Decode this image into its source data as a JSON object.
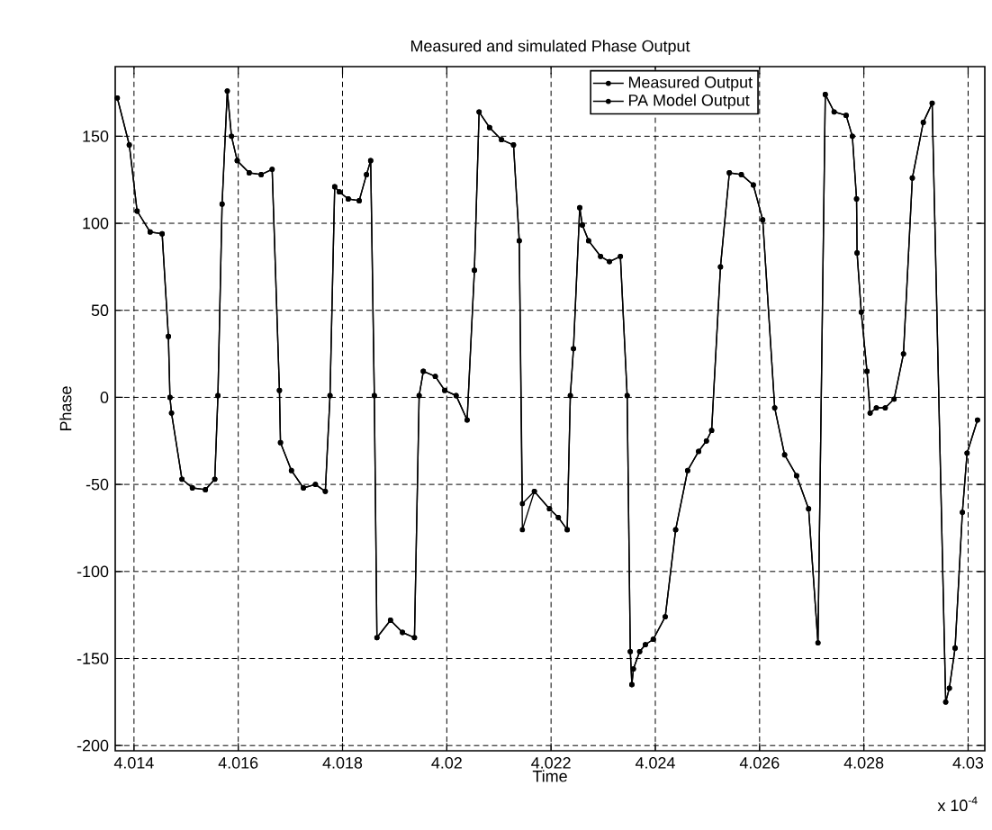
{
  "chart_data": {
    "type": "line",
    "title": "Measured and simulated Phase Output",
    "xlabel": "Time",
    "ylabel": "Phase",
    "annotations": [
      "x 10$^{-4}$"
    ],
    "x": [
      4.01368,
      4.01391,
      4.01406,
      4.01431,
      4.01454,
      4.01466,
      4.01469,
      4.01472,
      4.01492,
      4.01512,
      4.01537,
      4.01555,
      4.01561,
      4.01569,
      4.01579,
      4.01587,
      4.01598,
      4.01621,
      4.01644,
      4.01665,
      4.01679,
      4.01681,
      4.01702,
      4.01725,
      4.01748,
      4.01767,
      4.01776,
      4.01785,
      4.01794,
      4.01811,
      4.01832,
      4.01846,
      4.01854,
      4.01861,
      4.01866,
      4.01892,
      4.01915,
      4.01938,
      4.01947,
      4.01955,
      4.01978,
      4.01996,
      4.02018,
      4.02039,
      4.02053,
      4.02062,
      4.02082,
      4.02105,
      4.02128,
      4.02139,
      4.02145,
      4.02168,
      4.02197,
      4.02214,
      4.02231,
      4.02237,
      4.02243,
      4.02255,
      4.0226,
      4.02272,
      4.02295,
      4.02312,
      4.02333,
      4.02346,
      4.02352,
      4.02355,
      4.02358,
      4.0237,
      4.02381,
      4.02396,
      4.02419,
      4.02439,
      4.02462,
      4.02483,
      4.02498,
      4.02508,
      4.02525,
      4.02542,
      4.02565,
      4.02588,
      4.02606,
      4.02629,
      4.02648,
      4.02671,
      4.02694,
      4.02712,
      4.02726,
      4.02743,
      4.02766,
      4.02778,
      4.02786,
      4.02787,
      4.02795,
      4.02806,
      4.02812,
      4.02824,
      4.02841,
      4.02858,
      4.02876,
      4.02893,
      4.02914,
      4.02931,
      4.02957,
      4.02964,
      4.02975,
      4.02989,
      4.02998,
      4.03018
    ],
    "series": [
      {
        "name": "Measured Output",
        "color": "#000000",
        "values": [
          172,
          145,
          107,
          95,
          94,
          35,
          0,
          -9,
          -47,
          -52,
          -53,
          -47,
          1,
          111,
          176,
          150,
          136,
          129,
          128,
          131,
          4,
          -26,
          -42,
          -52,
          -50,
          -54,
          1,
          121,
          118,
          114,
          113,
          128,
          136,
          1,
          -138,
          -128,
          -135,
          -138,
          1,
          15,
          12,
          4,
          1,
          -13,
          73,
          164,
          155,
          148,
          145,
          90,
          -61,
          -54,
          -64,
          -69,
          -76,
          1,
          28,
          109,
          99,
          90,
          81,
          78,
          81,
          1,
          -146,
          -165,
          -156,
          -146,
          -142,
          -139,
          -126,
          -76,
          -42,
          -31,
          -25,
          -19,
          75,
          129,
          128,
          122,
          102,
          -6,
          -33,
          -45,
          -64,
          -141,
          174,
          164,
          162,
          150,
          114,
          83,
          49,
          15,
          -9,
          -6,
          -6,
          -1,
          25,
          126,
          158,
          169,
          -175,
          -167,
          -144,
          -66,
          -32,
          -13
        ]
      },
      {
        "name": "PA Model Output",
        "color": "#000000",
        "values": [
          172,
          145,
          107,
          95,
          94,
          35,
          0,
          -9,
          -47,
          -52,
          -53,
          -47,
          1,
          111,
          176,
          150,
          136,
          129,
          128,
          131,
          4,
          -26,
          -42,
          -52,
          -50,
          -54,
          1,
          121,
          118,
          114,
          113,
          128,
          136,
          1,
          -138,
          -128,
          -135,
          -138,
          1,
          15,
          12,
          4,
          1,
          -13,
          73,
          164,
          155,
          148,
          145,
          90,
          -76,
          -54,
          -64,
          -69,
          -76,
          1,
          28,
          109,
          99,
          90,
          81,
          78,
          81,
          1,
          -146,
          -165,
          -156,
          -146,
          -142,
          -139,
          -126,
          -76,
          -42,
          -31,
          -25,
          -19,
          75,
          129,
          128,
          122,
          102,
          -6,
          -33,
          -45,
          -64,
          -141,
          174,
          164,
          162,
          150,
          114,
          83,
          49,
          15,
          -9,
          -6,
          -6,
          -1,
          25,
          126,
          158,
          169,
          -175,
          -167,
          -144,
          -66,
          -32,
          -13
        ]
      }
    ],
    "xlim": [
      4.01364,
      4.03032
    ],
    "ylim": [
      -203,
      190
    ],
    "xticks": [
      4.014,
      4.016,
      4.018,
      4.02,
      4.022,
      4.024,
      4.026,
      4.028,
      4.03
    ],
    "yticks": [
      -200,
      -150,
      -100,
      -50,
      0,
      50,
      100,
      150
    ],
    "grid": true,
    "legend": "top right",
    "marker": "circle",
    "line_style": "solid"
  }
}
